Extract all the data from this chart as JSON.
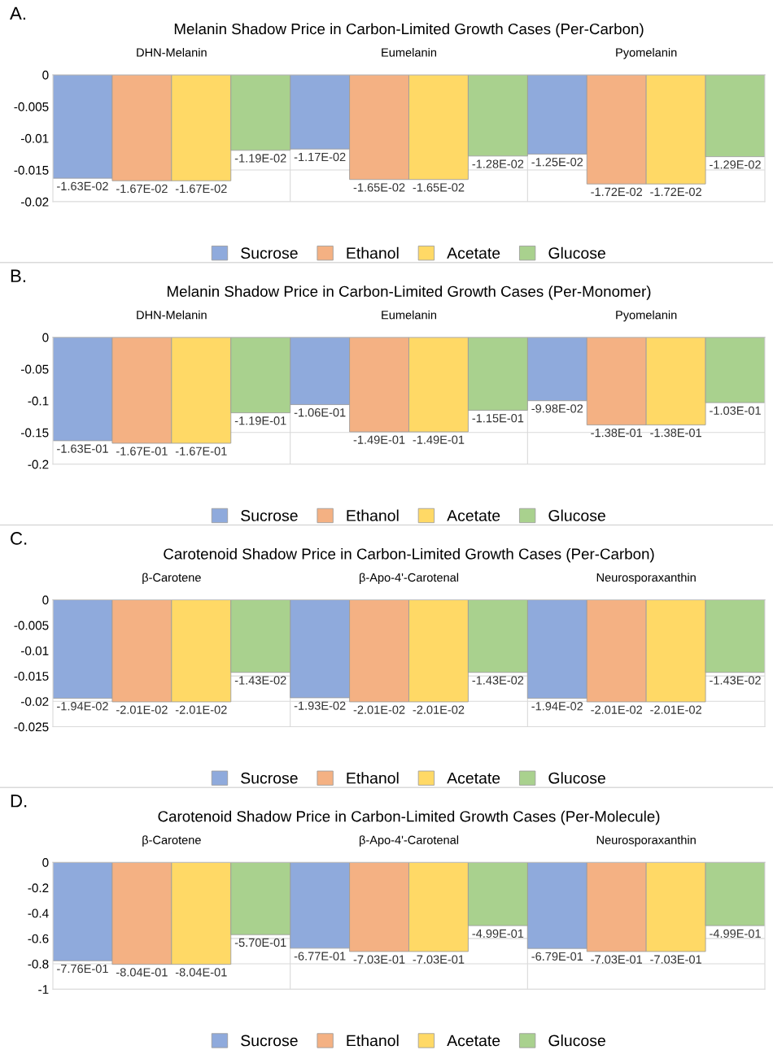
{
  "chart_data": [
    {
      "type": "bar",
      "title": "Melanin Shadow Price in Carbon-Limited Growth Cases (Per-Carbon)",
      "annotations": [
        "A."
      ],
      "categories": [
        "DHN-Melanin",
        "Eumelanin",
        "Pyomelanin"
      ],
      "ylim": [
        -0.02,
        0
      ],
      "yticks": [
        -0.02,
        -0.015,
        -0.01,
        -0.005,
        0
      ],
      "grid": "y",
      "legend": "bottom",
      "series": [
        {
          "name": "Sucrose",
          "color": "#8faadc",
          "values": [
            -0.0163,
            -0.0117,
            -0.0125
          ],
          "value_labels": [
            "-1.63E-02",
            "-1.17E-02",
            "-1.25E-02"
          ]
        },
        {
          "name": "Ethanol",
          "color": "#f4b183",
          "values": [
            -0.0167,
            -0.0165,
            -0.0172
          ],
          "value_labels": [
            "-1.67E-02",
            "-1.65E-02",
            "-1.72E-02"
          ]
        },
        {
          "name": "Acetate",
          "color": "#ffd966",
          "values": [
            -0.0167,
            -0.0165,
            -0.0172
          ],
          "value_labels": [
            "-1.67E-02",
            "-1.65E-02",
            "-1.72E-02"
          ]
        },
        {
          "name": "Glucose",
          "color": "#a9d18e",
          "values": [
            -0.0119,
            -0.0128,
            -0.0129
          ],
          "value_labels": [
            "-1.19E-02",
            "-1.28E-02",
            "-1.29E-02"
          ]
        }
      ]
    },
    {
      "type": "bar",
      "title": "Melanin Shadow Price in Carbon-Limited Growth Cases (Per-Monomer)",
      "annotations": [
        "B."
      ],
      "categories": [
        "DHN-Melanin",
        "Eumelanin",
        "Pyomelanin"
      ],
      "ylim": [
        -0.2,
        0
      ],
      "yticks": [
        -0.2,
        -0.15,
        -0.1,
        -0.05,
        0
      ],
      "grid": "y",
      "legend": "bottom",
      "series": [
        {
          "name": "Sucrose",
          "color": "#8faadc",
          "values": [
            -0.163,
            -0.106,
            -0.0998
          ],
          "value_labels": [
            "-1.63E-01",
            "-1.06E-01",
            "-9.98E-02"
          ]
        },
        {
          "name": "Ethanol",
          "color": "#f4b183",
          "values": [
            -0.167,
            -0.149,
            -0.138
          ],
          "value_labels": [
            "-1.67E-01",
            "-1.49E-01",
            "-1.38E-01"
          ]
        },
        {
          "name": "Acetate",
          "color": "#ffd966",
          "values": [
            -0.167,
            -0.149,
            -0.138
          ],
          "value_labels": [
            "-1.67E-01",
            "-1.49E-01",
            "-1.38E-01"
          ]
        },
        {
          "name": "Glucose",
          "color": "#a9d18e",
          "values": [
            -0.119,
            -0.115,
            -0.103
          ],
          "value_labels": [
            "-1.19E-01",
            "-1.15E-01",
            "-1.03E-01"
          ]
        }
      ]
    },
    {
      "type": "bar",
      "title": "Carotenoid Shadow Price in Carbon-Limited Growth Cases (Per-Carbon)",
      "annotations": [
        "C."
      ],
      "categories": [
        "β-Carotene",
        "β-Apo-4'-Carotenal",
        "Neurosporaxanthin"
      ],
      "ylim": [
        -0.025,
        0
      ],
      "yticks": [
        -0.025,
        -0.02,
        -0.015,
        -0.01,
        -0.005,
        0
      ],
      "grid": "y",
      "legend": "bottom",
      "series": [
        {
          "name": "Sucrose",
          "color": "#8faadc",
          "values": [
            -0.0194,
            -0.0193,
            -0.0194
          ],
          "value_labels": [
            "-1.94E-02",
            "-1.93E-02",
            "-1.94E-02"
          ]
        },
        {
          "name": "Ethanol",
          "color": "#f4b183",
          "values": [
            -0.0201,
            -0.0201,
            -0.0201
          ],
          "value_labels": [
            "-2.01E-02",
            "-2.01E-02",
            "-2.01E-02"
          ]
        },
        {
          "name": "Acetate",
          "color": "#ffd966",
          "values": [
            -0.0201,
            -0.0201,
            -0.0201
          ],
          "value_labels": [
            "-2.01E-02",
            "-2.01E-02",
            "-2.01E-02"
          ]
        },
        {
          "name": "Glucose",
          "color": "#a9d18e",
          "values": [
            -0.0143,
            -0.0143,
            -0.0143
          ],
          "value_labels": [
            "-1.43E-02",
            "-1.43E-02",
            "-1.43E-02"
          ]
        }
      ]
    },
    {
      "type": "bar",
      "title": "Carotenoid Shadow Price in Carbon-Limited Growth Cases (Per-Molecule)",
      "annotations": [
        "D."
      ],
      "categories": [
        "β-Carotene",
        "β-Apo-4'-Carotenal",
        "Neurosporaxanthin"
      ],
      "ylim": [
        -1,
        0
      ],
      "yticks": [
        -1,
        -0.8,
        -0.6,
        -0.4,
        -0.2,
        0
      ],
      "grid": "y",
      "legend": "bottom",
      "series": [
        {
          "name": "Sucrose",
          "color": "#8faadc",
          "values": [
            -0.776,
            -0.677,
            -0.679
          ],
          "value_labels": [
            "-7.76E-01",
            "-6.77E-01",
            "-6.79E-01"
          ]
        },
        {
          "name": "Ethanol",
          "color": "#f4b183",
          "values": [
            -0.804,
            -0.703,
            -0.703
          ],
          "value_labels": [
            "-8.04E-01",
            "-7.03E-01",
            "-7.03E-01"
          ]
        },
        {
          "name": "Acetate",
          "color": "#ffd966",
          "values": [
            -0.804,
            -0.703,
            -0.703
          ],
          "value_labels": [
            "-8.04E-01",
            "-7.03E-01",
            "-7.03E-01"
          ]
        },
        {
          "name": "Glucose",
          "color": "#a9d18e",
          "values": [
            -0.57,
            -0.499,
            -0.499
          ],
          "value_labels": [
            "-5.70E-01",
            "-4.99E-01",
            "-4.99E-01"
          ]
        }
      ]
    }
  ]
}
